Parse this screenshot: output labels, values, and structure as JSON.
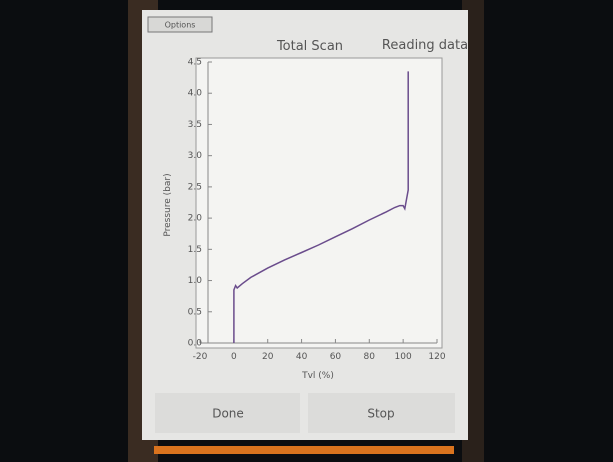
{
  "ui": {
    "options": "Options",
    "status": "Reading data",
    "buttons": [
      "Done",
      "Stop"
    ]
  },
  "chart_data": {
    "type": "line",
    "title": "Total Scan",
    "x_label": "Tvl (%)",
    "y_label": "Pressure (bar)",
    "x": [
      0,
      0,
      1,
      2,
      5,
      10,
      20,
      30,
      40,
      50,
      60,
      70,
      80,
      90,
      95,
      98,
      100,
      101,
      102,
      103,
      103
    ],
    "series": [
      {
        "color": "#6a4c8c",
        "values": [
          0,
          0.85,
          0.92,
          0.88,
          0.95,
          1.05,
          1.2,
          1.33,
          1.45,
          1.57,
          1.7,
          1.83,
          1.97,
          2.1,
          2.17,
          2.2,
          2.2,
          2.15,
          2.3,
          2.45,
          4.35
        ]
      }
    ],
    "xlim": [
      -20,
      120
    ],
    "xticks": [
      -20,
      0,
      20,
      40,
      60,
      80,
      100,
      120
    ],
    "ylim": [
      0,
      4.5
    ],
    "yticks": [
      {
        "value": 0,
        "label": "0.0"
      },
      0.5,
      {
        "value": 1,
        "label": "1.0"
      },
      1.5,
      {
        "value": 2,
        "label": "2.0"
      },
      2.5,
      {
        "value": 3,
        "label": "3.0"
      },
      3.5,
      {
        "value": 4,
        "label": "4.0"
      },
      4.5
    ]
  }
}
